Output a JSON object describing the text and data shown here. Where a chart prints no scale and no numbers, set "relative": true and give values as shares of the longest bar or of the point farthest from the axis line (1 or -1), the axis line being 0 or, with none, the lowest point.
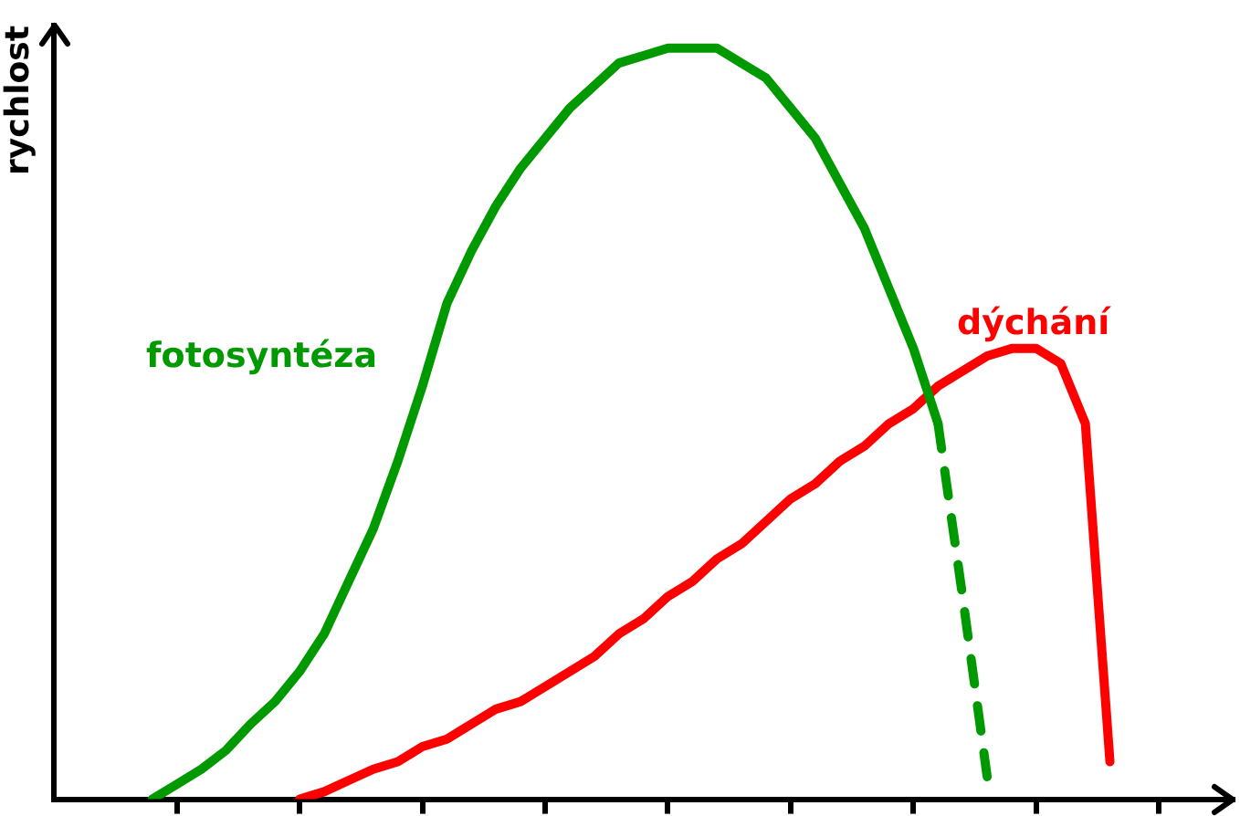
{
  "chart_data": {
    "type": "line",
    "relative": true,
    "ylabel": "rychlost",
    "grid": false,
    "legend": false,
    "marker": "none",
    "categories": [
      null,
      null,
      null,
      null,
      null,
      null,
      null,
      null,
      null,
      null,
      null,
      null,
      null,
      null,
      null,
      null,
      null,
      null,
      null,
      null,
      null,
      null,
      null,
      null,
      null,
      null,
      null,
      null,
      null,
      null,
      null,
      null,
      null,
      null,
      null,
      null,
      null,
      null,
      null,
      null,
      null,
      null,
      null,
      null,
      null,
      null,
      null,
      null,
      null
    ],
    "series": [
      {
        "name": "fotosyntéza",
        "color": "#009900",
        "line_style": "solid",
        "values": [
          null,
          null,
          null,
          null,
          0,
          0.02,
          0.04,
          0.065,
          0.1,
          0.13,
          0.17,
          0.22,
          0.29,
          0.36,
          0.45,
          0.55,
          0.66,
          0.73,
          0.79,
          0.84,
          0.88,
          0.92,
          0.95,
          0.98,
          0.99,
          1,
          1,
          1,
          0.98,
          0.96,
          0.92,
          0.88,
          0.82,
          0.76,
          0.68,
          0.6,
          0.5,
          null,
          null,
          null,
          null,
          null,
          null,
          null,
          null,
          null,
          null,
          null,
          null
        ]
      },
      {
        "color": "#009900",
        "line_style": "dashed",
        "values": [
          null,
          null,
          null,
          null,
          null,
          null,
          null,
          null,
          null,
          null,
          null,
          null,
          null,
          null,
          null,
          null,
          null,
          null,
          null,
          null,
          null,
          null,
          null,
          null,
          null,
          null,
          null,
          null,
          null,
          null,
          null,
          null,
          null,
          null,
          null,
          null,
          0.5,
          0.27,
          0.03,
          null,
          null,
          null,
          null,
          null,
          null,
          null,
          null,
          null,
          null
        ]
      },
      {
        "name": "dýchání",
        "color": "#ff0000",
        "line_style": "solid",
        "values": [
          null,
          null,
          null,
          null,
          null,
          null,
          null,
          null,
          null,
          null,
          0,
          0.01,
          0.025,
          0.04,
          0.05,
          0.07,
          0.08,
          0.1,
          0.12,
          0.13,
          0.15,
          0.17,
          0.19,
          0.22,
          0.24,
          0.27,
          0.29,
          0.32,
          0.34,
          0.37,
          0.4,
          0.42,
          0.45,
          0.47,
          0.5,
          0.52,
          0.55,
          0.57,
          0.59,
          0.6,
          0.6,
          0.58,
          0.5,
          0.05,
          null,
          null,
          null,
          null,
          null
        ]
      }
    ]
  }
}
